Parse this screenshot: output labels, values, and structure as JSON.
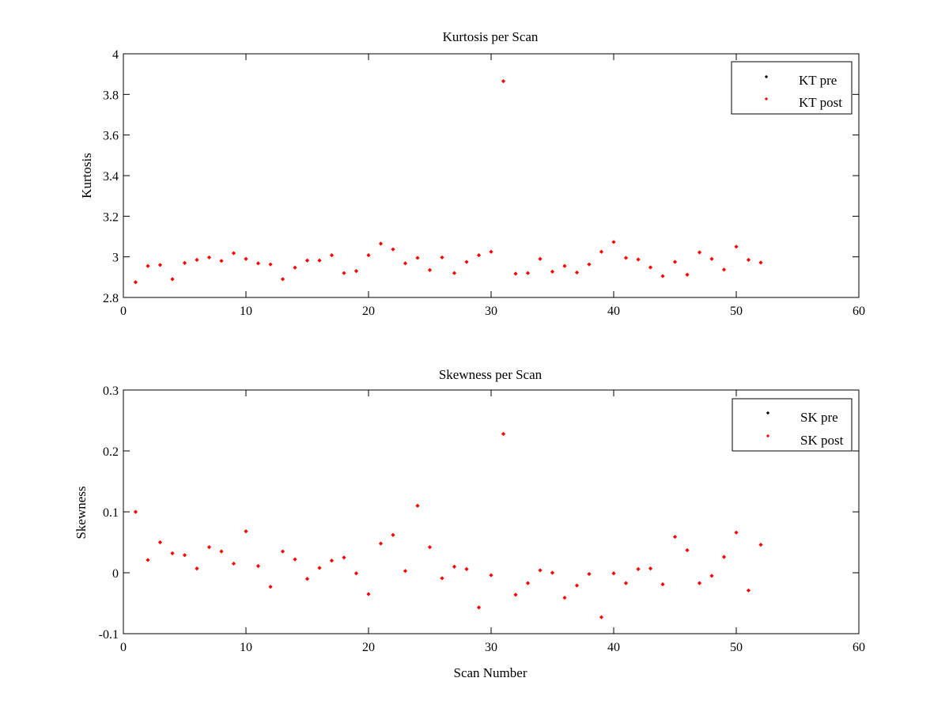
{
  "colors": {
    "pre": "#000000",
    "post": "#ff0000",
    "axes": "#000000",
    "background": "#ffffff"
  },
  "chart_data": [
    {
      "type": "scatter",
      "title": "Kurtosis per Scan",
      "xlabel": "",
      "ylabel": "Kurtosis",
      "xlim": [
        0,
        60
      ],
      "ylim": [
        2.8,
        4
      ],
      "xticks": [
        0,
        10,
        20,
        30,
        40,
        50,
        60
      ],
      "yticks": [
        2.8,
        3,
        3.2,
        3.4,
        3.6,
        3.8,
        4
      ],
      "xtick_labels": [
        "0",
        "10",
        "20",
        "30",
        "40",
        "50",
        "60"
      ],
      "ytick_labels": [
        "2.8",
        "3",
        "3.2",
        "3.4",
        "3.6",
        "3.8",
        "4"
      ],
      "grid": false,
      "legend_position": "top-right",
      "series": [
        {
          "name": "KT pre",
          "color": "#000000",
          "x": [],
          "y": []
        },
        {
          "name": "KT post",
          "color": "#ff0000",
          "x": [
            1,
            2,
            3,
            4,
            5,
            6,
            7,
            8,
            9,
            10,
            11,
            12,
            13,
            14,
            15,
            16,
            17,
            18,
            19,
            20,
            21,
            22,
            23,
            24,
            25,
            26,
            27,
            28,
            29,
            30,
            31,
            32,
            33,
            34,
            35,
            36,
            37,
            38,
            39,
            40,
            41,
            42,
            43,
            44,
            45,
            46,
            47,
            48,
            49,
            50,
            51,
            52
          ],
          "y": [
            2.875,
            2.955,
            2.96,
            2.89,
            2.97,
            2.985,
            2.997,
            2.98,
            3.018,
            2.99,
            2.968,
            2.963,
            2.89,
            2.947,
            2.982,
            2.982,
            3.008,
            2.92,
            2.93,
            3.008,
            3.065,
            3.037,
            2.968,
            2.995,
            2.935,
            2.997,
            2.92,
            2.975,
            3.008,
            3.025,
            3.865,
            2.917,
            2.92,
            2.99,
            2.927,
            2.955,
            2.923,
            2.963,
            3.025,
            3.073,
            2.995,
            2.987,
            2.948,
            2.905,
            2.975,
            2.912,
            3.022,
            2.99,
            2.937,
            3.05,
            2.985,
            2.972
          ]
        }
      ]
    },
    {
      "type": "scatter",
      "title": "Skewness per Scan",
      "xlabel": "Scan Number",
      "ylabel": "Skewness",
      "xlim": [
        0,
        60
      ],
      "ylim": [
        -0.1,
        0.3
      ],
      "xticks": [
        0,
        10,
        20,
        30,
        40,
        50,
        60
      ],
      "yticks": [
        -0.1,
        0,
        0.1,
        0.2,
        0.3
      ],
      "xtick_labels": [
        "0",
        "10",
        "20",
        "30",
        "40",
        "50",
        "60"
      ],
      "ytick_labels": [
        "-0.1",
        "0",
        "0.1",
        "0.2",
        "0.3"
      ],
      "grid": false,
      "legend_position": "top-right",
      "series": [
        {
          "name": "SK pre",
          "color": "#000000",
          "x": [],
          "y": []
        },
        {
          "name": "SK post",
          "color": "#ff0000",
          "x": [
            1,
            2,
            3,
            4,
            5,
            6,
            7,
            8,
            9,
            10,
            11,
            12,
            13,
            14,
            15,
            16,
            17,
            18,
            19,
            20,
            21,
            22,
            23,
            24,
            25,
            26,
            27,
            28,
            29,
            30,
            31,
            32,
            33,
            34,
            35,
            36,
            37,
            38,
            39,
            40,
            41,
            42,
            43,
            44,
            45,
            46,
            47,
            48,
            49,
            50,
            51,
            52
          ],
          "y": [
            0.1,
            0.021,
            0.05,
            0.032,
            0.029,
            0.007,
            0.042,
            0.035,
            0.015,
            0.068,
            0.011,
            -0.023,
            0.035,
            0.022,
            -0.01,
            0.008,
            0.02,
            0.025,
            -0.001,
            -0.035,
            0.048,
            0.062,
            0.003,
            0.11,
            0.042,
            -0.009,
            0.01,
            0.006,
            -0.057,
            -0.004,
            0.228,
            -0.036,
            -0.017,
            0.004,
            0.0,
            -0.041,
            -0.021,
            -0.002,
            -0.073,
            -0.001,
            -0.017,
            0.006,
            0.007,
            -0.019,
            0.059,
            0.037,
            -0.017,
            -0.005,
            0.026,
            0.066,
            -0.029,
            0.046
          ]
        }
      ]
    }
  ]
}
